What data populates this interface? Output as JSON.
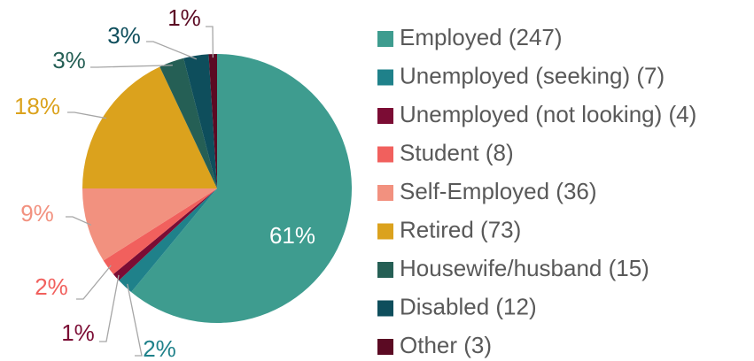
{
  "chart_data": {
    "type": "pie",
    "categories": [
      "Employed (247)",
      "Unemployed (seeking) (7)",
      "Unemployed (not looking) (4)",
      "Student (8)",
      "Self-Employed (36)",
      "Retired (73)",
      "Housewife/husband (15)",
      "Disabled (12)",
      "Other (3)"
    ],
    "values": [
      61,
      2,
      1,
      2,
      9,
      18,
      3,
      3,
      1
    ],
    "value_labels": [
      "61%",
      "2%",
      "1%",
      "2%",
      "9%",
      "18%",
      "3%",
      "3%",
      "1%"
    ],
    "colors": [
      "#3e9c8f",
      "#1f818a",
      "#7b0c34",
      "#f1605d",
      "#f2917f",
      "#dba21d",
      "#255f55",
      "#0e4e5c",
      "#5b0a23"
    ],
    "legend": "right"
  }
}
